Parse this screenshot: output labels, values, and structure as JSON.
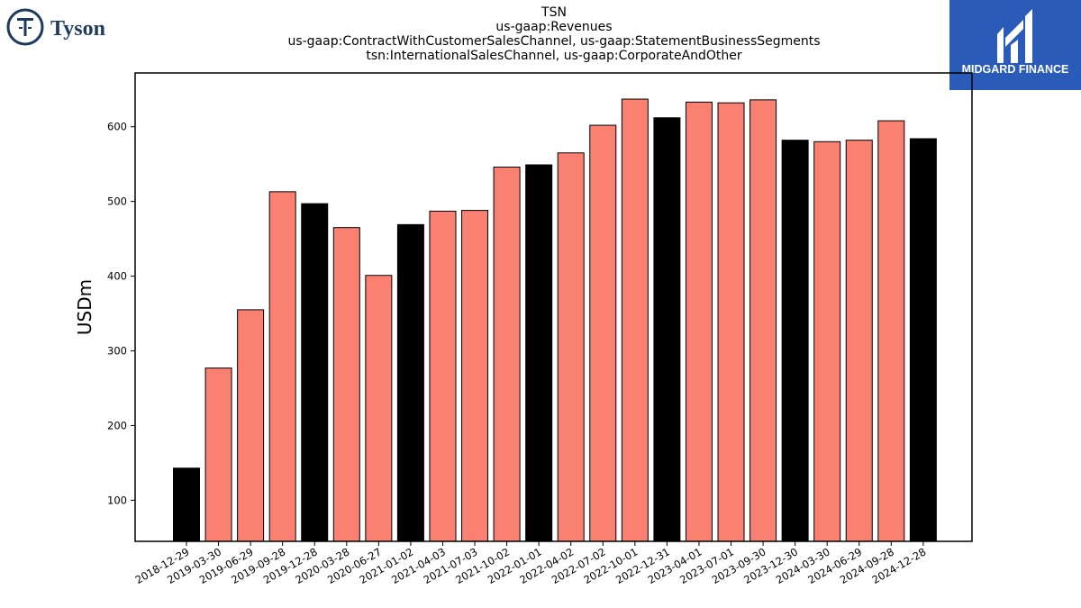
{
  "logos": {
    "left_text": "Tyson",
    "right_text": "MIDGARD FINANCE"
  },
  "colors": {
    "quarter_bar": "#fa8072",
    "year_end_bar": "#000000",
    "logo_navy": "#1f3a5f",
    "logo_blue": "#2a5bb8"
  },
  "chart_data": {
    "type": "bar",
    "title_lines": [
      "TSN",
      "us-gaap:Revenues",
      "us-gaap:ContractWithCustomerSalesChannel, us-gaap:StatementBusinessSegments",
      "tsn:InternationalSalesChannel, us-gaap:CorporateAndOther"
    ],
    "xlabel": "",
    "ylabel": "USDm",
    "ylim": [
      45,
      672
    ],
    "yticks": [
      100,
      200,
      300,
      400,
      500,
      600
    ],
    "categories": [
      "2018-12-29",
      "2019-03-30",
      "2019-06-29",
      "2019-09-28",
      "2019-12-28",
      "2020-03-28",
      "2020-06-27",
      "2021-01-02",
      "2021-04-03",
      "2021-07-03",
      "2021-10-02",
      "2022-01-01",
      "2022-04-02",
      "2022-07-02",
      "2022-10-01",
      "2022-12-31",
      "2023-04-01",
      "2023-07-01",
      "2023-09-30",
      "2023-12-30",
      "2024-03-30",
      "2024-06-29",
      "2024-09-28",
      "2024-12-28"
    ],
    "values": [
      143,
      277,
      355,
      513,
      497,
      465,
      401,
      469,
      487,
      488,
      546,
      549,
      565,
      602,
      637,
      612,
      633,
      632,
      636,
      582,
      580,
      582,
      608,
      584
    ],
    "bar_kind": [
      "year_end",
      "quarter",
      "quarter",
      "quarter",
      "year_end",
      "quarter",
      "quarter",
      "year_end",
      "quarter",
      "quarter",
      "quarter",
      "year_end",
      "quarter",
      "quarter",
      "quarter",
      "year_end",
      "quarter",
      "quarter",
      "quarter",
      "year_end",
      "quarter",
      "quarter",
      "quarter",
      "year_end"
    ],
    "grid": false,
    "legend": "none"
  }
}
